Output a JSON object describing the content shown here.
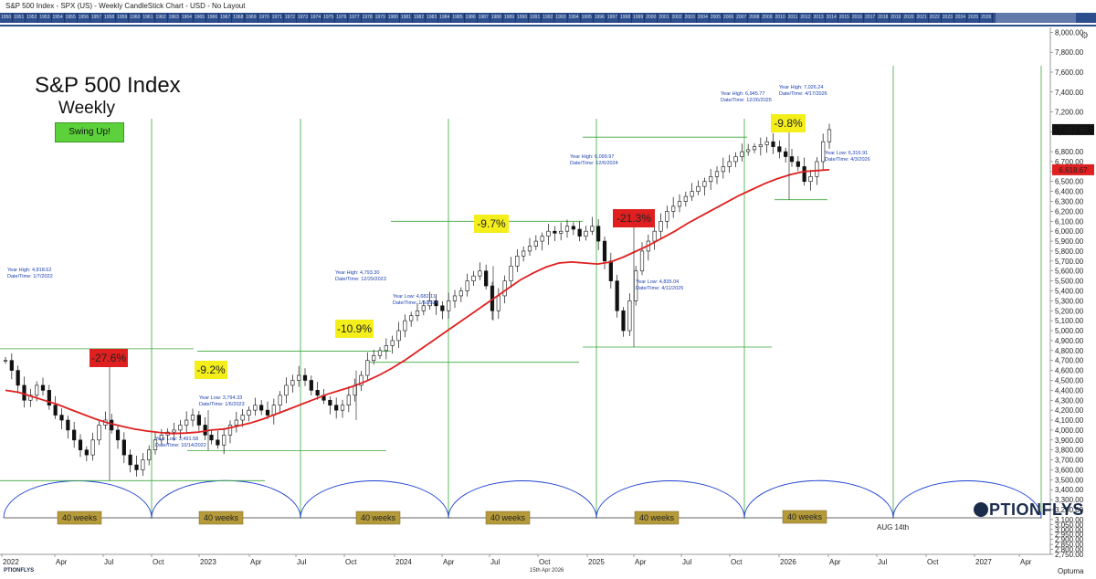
{
  "window": {
    "title": "S&P 500 Index - SPX (US) - Weekly CandleStick Chart - USD - No Layout"
  },
  "timeline": {
    "years": [
      "1950",
      "1951",
      "1952",
      "1953",
      "1954",
      "1955",
      "1956",
      "1957",
      "1958",
      "1959",
      "1960",
      "1961",
      "1962",
      "1963",
      "1964",
      "1965",
      "1966",
      "1967",
      "1968",
      "1969",
      "1970",
      "1971",
      "1972",
      "1973",
      "1974",
      "1975",
      "1976",
      "1977",
      "1978",
      "1979",
      "1980",
      "1981",
      "1982",
      "1983",
      "1984",
      "1985",
      "1986",
      "1987",
      "1988",
      "1989",
      "1990",
      "1991",
      "1992",
      "1993",
      "1994",
      "1995",
      "1996",
      "1997",
      "1998",
      "1999",
      "2000",
      "2001",
      "2002",
      "2003",
      "2004",
      "2005",
      "2006",
      "2007",
      "2008",
      "2009",
      "2010",
      "2011",
      "2012",
      "2013",
      "2014",
      "2015",
      "2016",
      "2017",
      "2018",
      "2019",
      "2020",
      "2021",
      "2022",
      "2023",
      "2024",
      "2025",
      "2026"
    ]
  },
  "heading": {
    "title": "S&P 500 Index",
    "subtitle": "Weekly",
    "badge": "Swing Up!"
  },
  "brand": {
    "text": "PTIONFLYS"
  },
  "footer": {
    "date": "15th Apr 2026",
    "logo": "PTIONFLYS",
    "optuma": "Optuma"
  },
  "chart_data": {
    "type": "candlestick",
    "y_axis": {
      "min": 2750,
      "max": 8050,
      "ticks": [
        2750,
        2800,
        2850,
        2900,
        2950,
        3000,
        3050,
        3100,
        3200,
        3300,
        3400,
        3500,
        3600,
        3700,
        3800,
        3900,
        4000,
        4100,
        4200,
        4300,
        4400,
        4500,
        4600,
        4700,
        4800,
        4900,
        5000,
        5100,
        5200,
        5300,
        5400,
        5500,
        5600,
        5700,
        5800,
        5900,
        6000,
        6100,
        6200,
        6300,
        6400,
        6500,
        6600,
        6700,
        6800,
        7000,
        7200,
        7400,
        7600,
        7800,
        8000
      ]
    },
    "x_axis": {
      "labels": [
        "2022",
        "Apr",
        "Jul",
        "Oct",
        "2023",
        "Apr",
        "Jul",
        "Oct",
        "2024",
        "Apr",
        "Jul",
        "Oct",
        "2025",
        "Apr",
        "Jul",
        "Oct",
        "2026",
        "Apr",
        "Jul",
        "Oct",
        "2027",
        "Apr"
      ]
    },
    "last_price": "7,022.95",
    "ma_price": "6,618.67",
    "price_series": [
      4700,
      4600,
      4450,
      4300,
      4350,
      4450,
      4400,
      4250,
      4150,
      4100,
      4000,
      3900,
      3800,
      3750,
      3900,
      4050,
      4100,
      4000,
      3900,
      3750,
      3650,
      3600,
      3700,
      3800,
      3900,
      3950,
      3980,
      4000,
      4050,
      4100,
      4150,
      4050,
      3950,
      3900,
      3850,
      3950,
      4050,
      4100,
      4150,
      4200,
      4250,
      4200,
      4150,
      4250,
      4350,
      4450,
      4500,
      4550,
      4500,
      4400,
      4350,
      4300,
      4250,
      4200,
      4250,
      4350,
      4450,
      4550,
      4700,
      4750,
      4800,
      4850,
      4900,
      5000,
      5100,
      5150,
      5200,
      5250,
      5300,
      5250,
      5200,
      5300,
      5350,
      5400,
      5500,
      5550,
      5600,
      5450,
      5200,
      5350,
      5500,
      5650,
      5750,
      5800,
      5850,
      5900,
      5950,
      6000,
      5980,
      6000,
      6050,
      6020,
      5950,
      6000,
      6050,
      5900,
      5700,
      5500,
      5200,
      5000,
      5300,
      5600,
      5800,
      5900,
      6000,
      6100,
      6200,
      6250,
      6300,
      6350,
      6400,
      6450,
      6500,
      6550,
      6600,
      6650,
      6700,
      6750,
      6800,
      6820,
      6850,
      6870,
      6900,
      6850,
      6800,
      6750,
      6700,
      6650,
      6500,
      6550,
      6700,
      6900,
      7022
    ],
    "ma_series": [
      4400,
      4380,
      4340,
      4300,
      4260,
      4210,
      4160,
      4110,
      4070,
      4040,
      4010,
      3990,
      3975,
      3965,
      3970,
      3980,
      4000,
      4010,
      4040,
      4070,
      4110,
      4160,
      4210,
      4260,
      4310,
      4360,
      4400,
      4440,
      4490,
      4550,
      4620,
      4700,
      4790,
      4880,
      4970,
      5060,
      5150,
      5240,
      5330,
      5420,
      5510,
      5580,
      5640,
      5680,
      5690,
      5680,
      5670,
      5690,
      5740,
      5800,
      5860,
      5930,
      6000,
      6080,
      6150,
      6220,
      6290,
      6360,
      6420,
      6480,
      6530,
      6570,
      6600,
      6610,
      6618
    ],
    "annotations": {
      "yh1": "Year High: 4,818.62",
      "yh1d": "Date/Time: 1/7/2022",
      "yl1": "Year Low: 3,491.58",
      "yl1d": "Date/Time: 10/14/2022",
      "yl2": "Year Low: 3,794.33",
      "yl2d": "Date/Time: 1/6/2023",
      "yh2": "Year High: 4,793.30",
      "yh2d": "Date/Time: 12/29/2023",
      "yl3": "Year Low: 4,682.11",
      "yl3d": "Date/Time: 1/5/2024",
      "yh3": "Year High: 6,099.97",
      "yh3d": "Date/Time: 12/6/2024",
      "yl4": "Year Low: 4,835.04",
      "yl4d": "Date/Time: 4/11/2025",
      "yh4": "Year High: 6,945.77",
      "yh4d": "Date/Time: 12/26/2025",
      "yh5": "Year High: 7,026.24",
      "yh5d": "Date/Time: 4/17/2026",
      "yl5": "Year Low: 6,316.91",
      "yl5d": "Date/Time: 4/3/2026"
    },
    "drawdowns": [
      "-27.6%",
      "-9.2%",
      "-10.9%",
      "-9.7%",
      "-21.3%",
      "-9.8%"
    ],
    "cycle_label": "40 weeks",
    "cycle_end": "AUG 14th"
  }
}
